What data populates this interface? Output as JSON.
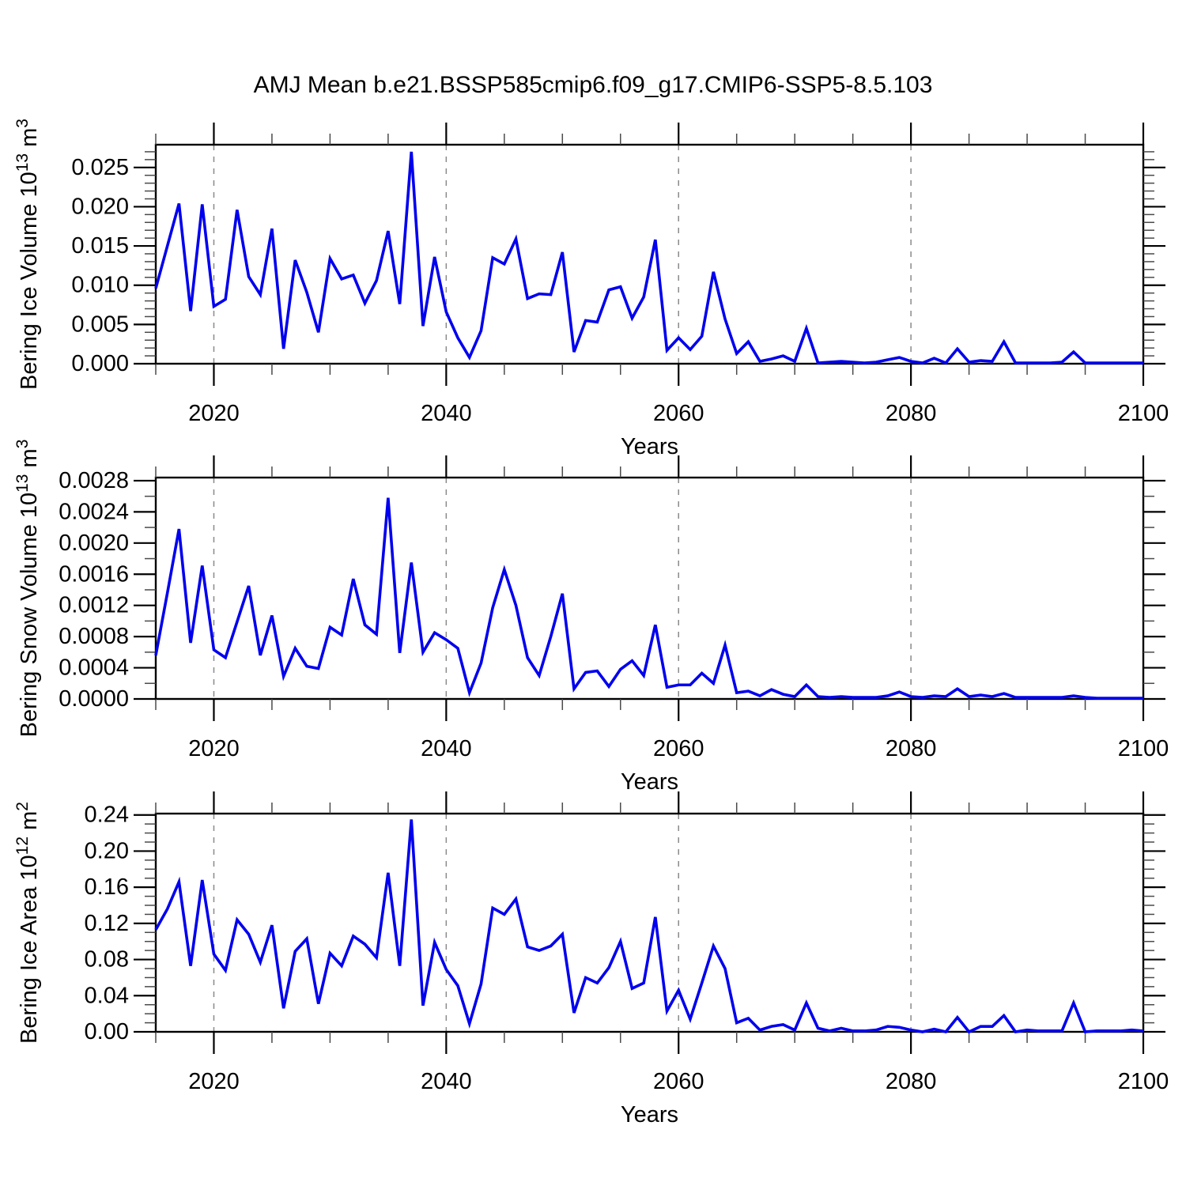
{
  "title": "AMJ Mean b.e21.BSSP585cmip6.f09_g17.CMIP6-SSP5-8.5.103",
  "colors": {
    "line": "#0000EE",
    "axis": "#000000",
    "grid": "#8A8A8A",
    "background": "#FFFFFF"
  },
  "chart_data": [
    {
      "type": "line",
      "series_name": "Bering Ice Volume",
      "ylabel": "Bering Ice Volume 10¹³ m³",
      "ylabel_parts": [
        {
          "t": "Bering Ice Volume 10",
          "sup": false
        },
        {
          "t": "13",
          "sup": true
        },
        {
          "t": " m",
          "sup": false
        },
        {
          "t": "3",
          "sup": true
        }
      ],
      "xlabel": "Years",
      "x_start": 2015,
      "x_step": 1,
      "xlim": [
        2015,
        2100
      ],
      "ylim": [
        0,
        0.0279
      ],
      "xticks": [
        2020,
        2040,
        2060,
        2080,
        2100
      ],
      "xtick_labels": [
        "2020",
        "2040",
        "2060",
        "2080",
        "2100"
      ],
      "x_minor_step": 5,
      "grid_x": [
        2020,
        2040,
        2060,
        2080
      ],
      "ytick_values": [
        0.0,
        0.005,
        0.01,
        0.015,
        0.02,
        0.025
      ],
      "ytick_labels": [
        "0.000",
        "0.005",
        "0.010",
        "0.015",
        "0.020",
        "0.025"
      ],
      "y_minor_step": 0.001,
      "grid_on": false,
      "legend": "none",
      "values": [
        0.0096,
        0.015,
        0.0204,
        0.0067,
        0.0203,
        0.0073,
        0.0082,
        0.0196,
        0.0111,
        0.0088,
        0.0172,
        0.0019,
        0.0132,
        0.0091,
        0.004,
        0.0134,
        0.0108,
        0.0113,
        0.0077,
        0.0106,
        0.0169,
        0.0076,
        0.027,
        0.0048,
        0.0136,
        0.0066,
        0.0033,
        0.0008,
        0.0042,
        0.0135,
        0.0127,
        0.0159,
        0.0083,
        0.0089,
        0.0088,
        0.0142,
        0.0015,
        0.0055,
        0.0053,
        0.0094,
        0.0098,
        0.0058,
        0.0085,
        0.0158,
        0.0017,
        0.0033,
        0.0018,
        0.0035,
        0.0117,
        0.0057,
        0.0013,
        0.0028,
        0.0003,
        0.0006,
        0.001,
        0.0003,
        0.0045,
        0.0001,
        0.0002,
        0.0003,
        0.0002,
        0.0001,
        0.0002,
        0.0005,
        0.0008,
        0.0003,
        0.0001,
        0.0007,
        0.0001,
        0.0019,
        0.0002,
        0.0004,
        0.0003,
        0.0028,
        0.0001,
        0.0001,
        0.0001,
        0.0001,
        0.0002,
        0.0015,
        0.0001,
        0.0001,
        0.0001,
        0.0001,
        0.0001,
        0.0001
      ]
    },
    {
      "type": "line",
      "series_name": "Bering Snow Volume",
      "ylabel": "Bering Snow Volume 10¹³ m³",
      "ylabel_parts": [
        {
          "t": "Bering Snow Volume 10",
          "sup": false
        },
        {
          "t": "13",
          "sup": true
        },
        {
          "t": " m",
          "sup": false
        },
        {
          "t": "3",
          "sup": true
        }
      ],
      "xlabel": "Years",
      "x_start": 2015,
      "x_step": 1,
      "xlim": [
        2015,
        2100
      ],
      "ylim": [
        0,
        0.00284
      ],
      "xticks": [
        2020,
        2040,
        2060,
        2080,
        2100
      ],
      "xtick_labels": [
        "2020",
        "2040",
        "2060",
        "2080",
        "2100"
      ],
      "x_minor_step": 5,
      "grid_x": [
        2020,
        2040,
        2060,
        2080
      ],
      "ytick_values": [
        0.0,
        0.0004,
        0.0008,
        0.0012,
        0.0016,
        0.002,
        0.0024,
        0.0028
      ],
      "ytick_labels": [
        "0.0000",
        "0.0004",
        "0.0008",
        "0.0012",
        "0.0016",
        "0.0020",
        "0.0024",
        "0.0028"
      ],
      "y_minor_step": 0.0002,
      "grid_on": false,
      "legend": "none",
      "values": [
        0.00056,
        0.00136,
        0.00218,
        0.00072,
        0.00171,
        0.00063,
        0.00053,
        0.00099,
        0.00145,
        0.00056,
        0.00107,
        0.00029,
        0.00065,
        0.00042,
        0.00039,
        0.00092,
        0.00082,
        0.00154,
        0.00095,
        0.00083,
        0.00258,
        0.00059,
        0.00175,
        0.0006,
        0.00085,
        0.00076,
        0.00065,
        8e-05,
        0.00046,
        0.00117,
        0.00166,
        0.0012,
        0.00053,
        0.0003,
        0.0008,
        0.00135,
        0.00013,
        0.00034,
        0.00036,
        0.00016,
        0.00038,
        0.00049,
        0.0003,
        0.00095,
        0.00015,
        0.00018,
        0.00018,
        0.00033,
        0.0002,
        0.00069,
        8e-05,
        0.0001,
        4e-05,
        0.00012,
        6e-05,
        3e-05,
        0.00018,
        3e-05,
        2e-05,
        3e-05,
        2e-05,
        2e-05,
        2e-05,
        4e-05,
        9e-05,
        3e-05,
        2e-05,
        4e-05,
        3e-05,
        0.00013,
        3e-05,
        5e-05,
        3e-05,
        7e-05,
        2e-05,
        2e-05,
        2e-05,
        2e-05,
        2e-05,
        4e-05,
        2e-05,
        1e-05,
        1e-05,
        1e-05,
        1e-05,
        1e-05
      ]
    },
    {
      "type": "line",
      "series_name": "Bering Ice Area",
      "ylabel": "Bering Ice Area 10¹² m²",
      "ylabel_parts": [
        {
          "t": "Bering Ice Area 10",
          "sup": false
        },
        {
          "t": "12",
          "sup": true
        },
        {
          "t": " m",
          "sup": false
        },
        {
          "t": "2",
          "sup": true
        }
      ],
      "xlabel": "Years",
      "x_start": 2015,
      "x_step": 1,
      "xlim": [
        2015,
        2100
      ],
      "ylim": [
        0,
        0.2415
      ],
      "xticks": [
        2020,
        2040,
        2060,
        2080,
        2100
      ],
      "xtick_labels": [
        "2020",
        "2040",
        "2060",
        "2080",
        "2100"
      ],
      "x_minor_step": 5,
      "grid_x": [
        2020,
        2040,
        2060,
        2080
      ],
      "ytick_values": [
        0.0,
        0.04,
        0.08,
        0.12,
        0.16,
        0.2,
        0.24
      ],
      "ytick_labels": [
        "0.00",
        "0.04",
        "0.08",
        "0.12",
        "0.16",
        "0.20",
        "0.24"
      ],
      "y_minor_step": 0.01,
      "grid_on": false,
      "legend": "none",
      "values": [
        0.113,
        0.136,
        0.166,
        0.073,
        0.168,
        0.086,
        0.068,
        0.124,
        0.108,
        0.077,
        0.118,
        0.026,
        0.089,
        0.103,
        0.031,
        0.087,
        0.073,
        0.106,
        0.097,
        0.082,
        0.176,
        0.073,
        0.235,
        0.029,
        0.099,
        0.069,
        0.051,
        0.009,
        0.053,
        0.137,
        0.13,
        0.147,
        0.094,
        0.09,
        0.095,
        0.108,
        0.021,
        0.06,
        0.054,
        0.071,
        0.1,
        0.048,
        0.054,
        0.127,
        0.023,
        0.046,
        0.014,
        0.054,
        0.095,
        0.07,
        0.01,
        0.015,
        0.002,
        0.006,
        0.008,
        0.002,
        0.032,
        0.004,
        0.001,
        0.004,
        0.001,
        0.001,
        0.002,
        0.006,
        0.005,
        0.002,
        0.0,
        0.003,
        0.0,
        0.016,
        0.0,
        0.006,
        0.006,
        0.018,
        0.0,
        0.002,
        0.001,
        0.001,
        0.001,
        0.032,
        0.0,
        0.001,
        0.001,
        0.001,
        0.002,
        0.001
      ]
    }
  ]
}
